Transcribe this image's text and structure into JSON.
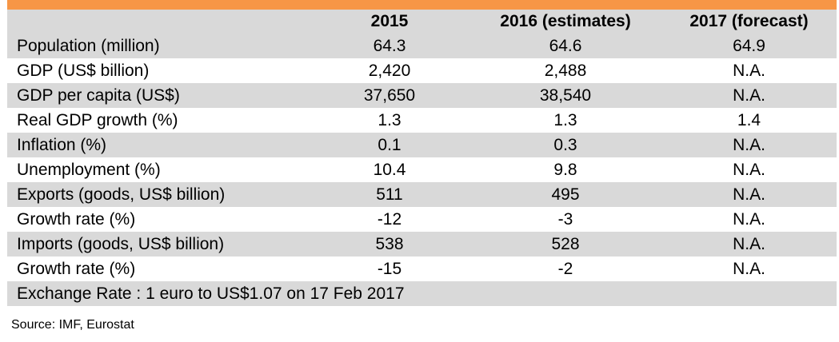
{
  "table": {
    "headers": [
      "",
      "2015",
      "2016 (estimates)",
      "2017 (forecast)"
    ],
    "rows": [
      [
        "Population (million)",
        "64.3",
        "64.6",
        "64.9"
      ],
      [
        "GDP (US$ billion)",
        "2,420",
        "2,488",
        "N.A."
      ],
      [
        "GDP per capita (US$)",
        "37,650",
        "38,540",
        "N.A."
      ],
      [
        "Real GDP growth (%)",
        "1.3",
        "1.3",
        "1.4"
      ],
      [
        "Inflation (%)",
        "0.1",
        "0.3",
        "N.A."
      ],
      [
        "Unemployment (%)",
        "10.4",
        "9.8",
        "N.A."
      ],
      [
        "Exports (goods, US$ billion)",
        "511",
        "495",
        "N.A."
      ],
      [
        "Growth rate (%)",
        "-12",
        "-3",
        "N.A."
      ],
      [
        "Imports (goods, US$ billion)",
        "538",
        "528",
        "N.A."
      ],
      [
        "Growth rate (%)",
        "-15",
        "-2",
        "N.A."
      ]
    ],
    "note": "Exchange Rate : 1 euro to US$1.07 on 17 Feb 2017"
  },
  "source": "Source: IMF, Eurostat",
  "colors": {
    "header_bar": "#f79646",
    "shaded_row": "#d9d9d9"
  }
}
